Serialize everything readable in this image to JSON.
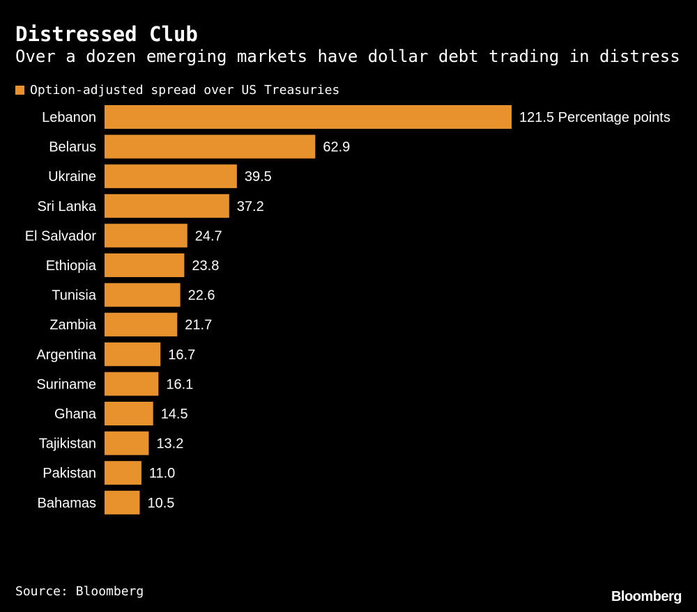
{
  "colors": {
    "background": "#000000",
    "bar": "#e8922e",
    "text": "#ffffff"
  },
  "chart_data": {
    "type": "bar",
    "orientation": "horizontal",
    "title": "Distressed Club",
    "subtitle": "Over a dozen emerging markets have dollar debt trading in distress",
    "legend_position": "top-left",
    "series": [
      {
        "name": "Option-adjusted spread over US Treasuries",
        "color": "#e8922e",
        "values": [
          121.5,
          62.9,
          39.5,
          37.2,
          24.7,
          23.8,
          22.6,
          21.7,
          16.7,
          16.1,
          14.5,
          13.2,
          11.0,
          10.5
        ]
      }
    ],
    "categories": [
      "Lebanon",
      "Belarus",
      "Ukraine",
      "Sri Lanka",
      "El Salvador",
      "Ethiopia",
      "Tunisia",
      "Zambia",
      "Argentina",
      "Suriname",
      "Ghana",
      "Tajikistan",
      "Pakistan",
      "Bahamas"
    ],
    "data_labels": [
      "121.5 Percentage points",
      "62.9",
      "39.5",
      "37.2",
      "24.7",
      "23.8",
      "22.6",
      "21.7",
      "16.7",
      "16.1",
      "14.5",
      "13.2",
      "11.0",
      "10.5"
    ],
    "xlim": [
      0,
      121.5
    ],
    "grid": false
  },
  "source": "Source: Bloomberg",
  "logo": "Bloomberg"
}
